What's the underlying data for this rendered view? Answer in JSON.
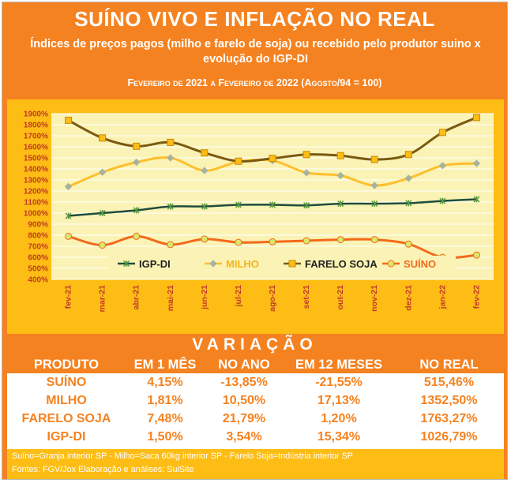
{
  "header": {
    "title": "SUÍNO VIVO E INFLAÇÃO NO REAL",
    "subtitle": "Índices de preços pagos (milho e farelo de soja) ou recebido pelo produtor suino x evolução do IGP-DI",
    "period": "Fevereiro de 2021 a Fevereiro de 2022 (Agosto/94 = 100)"
  },
  "colors": {
    "background": "#f58220",
    "panel": "#fdbd14",
    "plot": "#fbf3b5",
    "text_orange": "#f58220"
  },
  "chart_data": {
    "type": "line",
    "categories": [
      "fev-21",
      "mar-21",
      "abr-21",
      "mai-21",
      "jun-21",
      "jul-21",
      "ago-21",
      "set-21",
      "out-21",
      "nov-21",
      "dez-21",
      "jan-22",
      "fev-22"
    ],
    "ylim": [
      400,
      1900
    ],
    "yticks": [
      "400%",
      "500%",
      "600%",
      "700%",
      "800%",
      "900%",
      "1000%",
      "1100%",
      "1200%",
      "1300%",
      "1400%",
      "1500%",
      "1600%",
      "1700%",
      "1800%",
      "1900%"
    ],
    "grid": true,
    "legend": "bottom",
    "series": [
      {
        "name": "IGP-DI",
        "color": "#1f4e3d",
        "marker": "star",
        "values": [
          975,
          1000,
          1025,
          1060,
          1060,
          1075,
          1075,
          1070,
          1085,
          1085,
          1090,
          1110,
          1125
        ]
      },
      {
        "name": "MILHO",
        "color": "#fdbf2d",
        "marker": "diamond",
        "values": [
          1240,
          1370,
          1460,
          1500,
          1385,
          1465,
          1475,
          1365,
          1340,
          1250,
          1315,
          1430,
          1450
        ]
      },
      {
        "name": "FARELO SOJA",
        "color": "#7a5a10",
        "marker": "square",
        "values": [
          1840,
          1680,
          1605,
          1640,
          1545,
          1470,
          1495,
          1530,
          1520,
          1485,
          1530,
          1730,
          1865
        ]
      },
      {
        "name": "SUÍNO",
        "color": "#f26a1b",
        "marker": "circle",
        "values": [
          790,
          710,
          790,
          715,
          765,
          735,
          740,
          750,
          760,
          760,
          720,
          600,
          620
        ]
      }
    ]
  },
  "variacao": {
    "title": "VARIAÇÃO",
    "headers": [
      "PRODUTO",
      "EM 1 MÊS",
      "NO ANO",
      "EM 12 MESES",
      "NO REAL"
    ],
    "rows": [
      [
        "SUÍNO",
        "4,15%",
        "-13,85%",
        "-21,55%",
        "515,46%"
      ],
      [
        "MILHO",
        "1,81%",
        "10,50%",
        "17,13%",
        "1352,50%"
      ],
      [
        "FARELO SOJA",
        "7,48%",
        "21,79%",
        "1,20%",
        "1763,27%"
      ],
      [
        "IGP-DI",
        "1,50%",
        "3,54%",
        "15,34%",
        "1026,79%"
      ]
    ]
  },
  "footer": {
    "line1": "Suíno=Granja interior SP  -  Milho=Saca 60kg interior SP  -  Farelo Soja=Indústria interior SP",
    "line2": "Fontes: FGV/Jox     Elaboração e análises: SuiSite"
  }
}
